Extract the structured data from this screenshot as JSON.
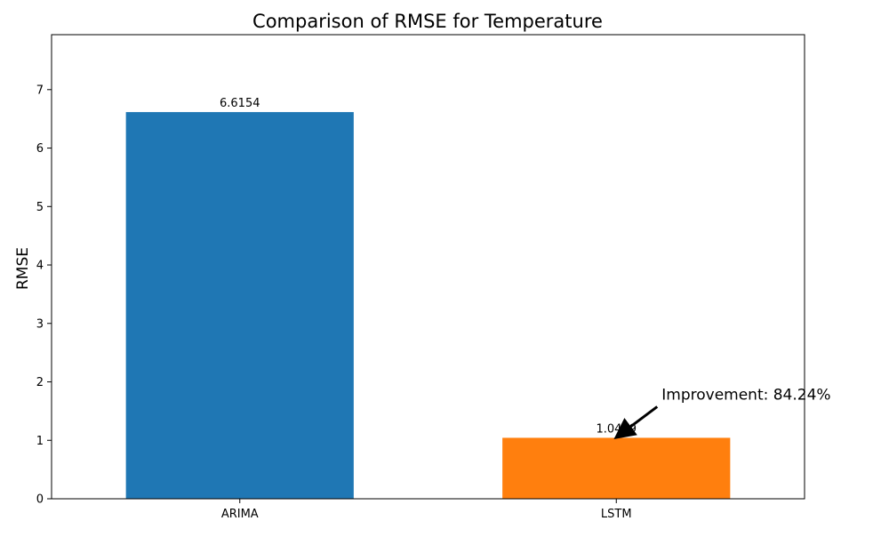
{
  "chart_data": {
    "type": "bar",
    "title": "Comparison of RMSE for Temperature",
    "xlabel": "",
    "ylabel": "RMSE",
    "categories": [
      "ARIMA",
      "LSTM"
    ],
    "values": [
      6.6154,
      1.0429
    ],
    "value_labels": [
      "6.6154",
      "1.0429"
    ],
    "colors": [
      "#1f77b4",
      "#ff7f0e"
    ],
    "ylim": [
      0,
      7.94
    ],
    "yticks": [
      0,
      1,
      2,
      3,
      4,
      5,
      6,
      7
    ],
    "grid": false,
    "annotation": {
      "text": "Improvement: 84.24%",
      "target_category": "LSTM",
      "target_value": 1.0429
    }
  }
}
